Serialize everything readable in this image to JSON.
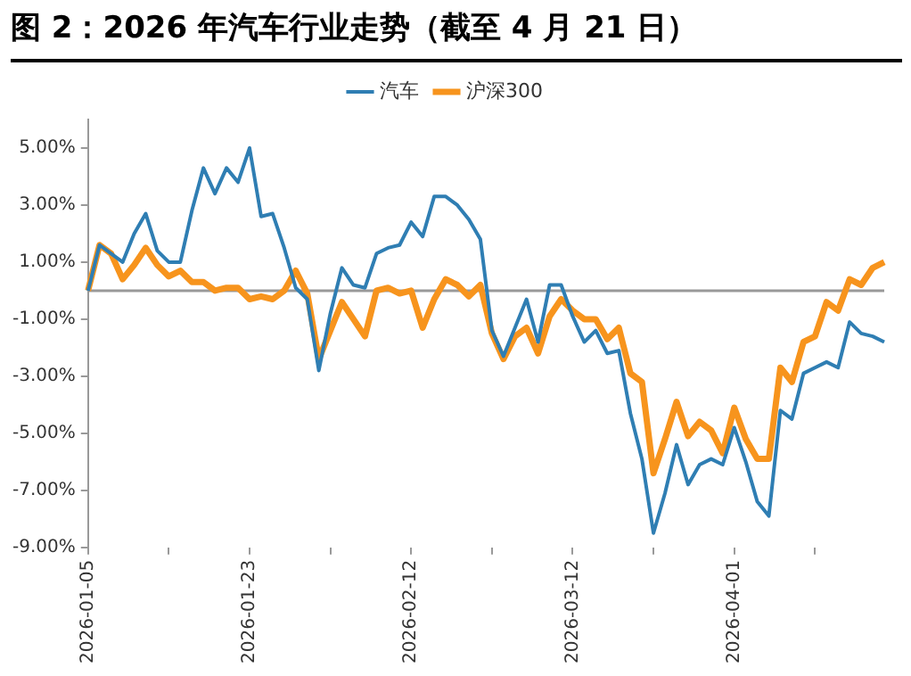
{
  "chart_data": {
    "type": "line",
    "title": "图 2：2026 年汽车行业走势（截至 4 月 21 日）",
    "categories": [
      "2026-01-05",
      null,
      null,
      null,
      null,
      null,
      null,
      null,
      null,
      null,
      null,
      null,
      null,
      null,
      "2026-01-23",
      null,
      null,
      null,
      null,
      null,
      null,
      null,
      null,
      null,
      null,
      null,
      null,
      null,
      "2026-02-12",
      null,
      null,
      null,
      null,
      null,
      null,
      null,
      null,
      null,
      null,
      null,
      null,
      null,
      "2026-03-12",
      null,
      null,
      null,
      null,
      null,
      null,
      null,
      null,
      null,
      null,
      null,
      null,
      null,
      "2026-04-01",
      null,
      null,
      null,
      null,
      null,
      null,
      null,
      null,
      null,
      null,
      null,
      null,
      null
    ],
    "series": [
      {
        "name": "汽车",
        "color": "#2f7eb3",
        "values": [
          0,
          1.6,
          1.3,
          1.0,
          2.0,
          2.7,
          1.4,
          1.0,
          1.0,
          2.8,
          4.3,
          3.4,
          4.3,
          3.8,
          5.0,
          2.6,
          2.7,
          1.5,
          0.1,
          -0.3,
          -2.8,
          -0.8,
          0.8,
          0.2,
          0.1,
          1.3,
          1.5,
          1.6,
          2.4,
          1.9,
          3.3,
          3.3,
          3.0,
          2.5,
          1.8,
          -1.4,
          -2.3,
          -1.3,
          -0.3,
          -1.8,
          0.2,
          0.2,
          -0.9,
          -1.8,
          -1.4,
          -2.2,
          -2.1,
          -4.3,
          -5.9,
          -8.5,
          -7.1,
          -5.4,
          -6.8,
          -6.1,
          -5.9,
          -6.1,
          -4.8,
          -6.0,
          -7.4,
          -7.9,
          -4.2,
          -4.5,
          -2.9,
          -2.7,
          -2.5,
          -2.7,
          -1.1,
          -1.5,
          -1.6,
          -1.8
        ]
      },
      {
        "name": "沪深300",
        "color": "#f7941d",
        "values": [
          0,
          1.6,
          1.3,
          0.4,
          0.9,
          1.5,
          0.9,
          0.5,
          0.7,
          0.3,
          0.3,
          0,
          0.1,
          0.1,
          -0.3,
          -0.2,
          -0.3,
          0,
          0.7,
          -0.1,
          -2.4,
          -1.4,
          -0.4,
          -1.0,
          -1.6,
          0,
          0.1,
          -0.1,
          0,
          -1.3,
          -0.3,
          0.4,
          0.2,
          -0.2,
          0.2,
          -1.5,
          -2.4,
          -1.6,
          -1.3,
          -2.2,
          -0.9,
          -0.3,
          -0.7,
          -1.0,
          -1.0,
          -1.7,
          -1.3,
          -2.9,
          -3.2,
          -6.4,
          -5.2,
          -3.9,
          -5.1,
          -4.6,
          -4.9,
          -5.7,
          -4.1,
          -5.2,
          -5.9,
          -5.9,
          -2.7,
          -3.2,
          -1.8,
          -1.6,
          -0.4,
          -0.7,
          0.4,
          0.2,
          0.8,
          1.0
        ]
      }
    ],
    "ylim": [
      -9,
      6
    ],
    "yticks": [
      {
        "value": -9,
        "label": "-9.00%"
      },
      {
        "value": -7,
        "label": "-7.00%"
      },
      {
        "value": -5,
        "label": "-5.00%"
      },
      {
        "value": -3,
        "label": "-3.00%"
      },
      {
        "value": -1,
        "label": "-1.00%"
      },
      {
        "value": 1,
        "label": "1.00%"
      },
      {
        "value": 3,
        "label": "3.00%"
      },
      {
        "value": 5,
        "label": "5.00%"
      }
    ],
    "legend": "top",
    "marker": "none",
    "line_style": "solid"
  }
}
